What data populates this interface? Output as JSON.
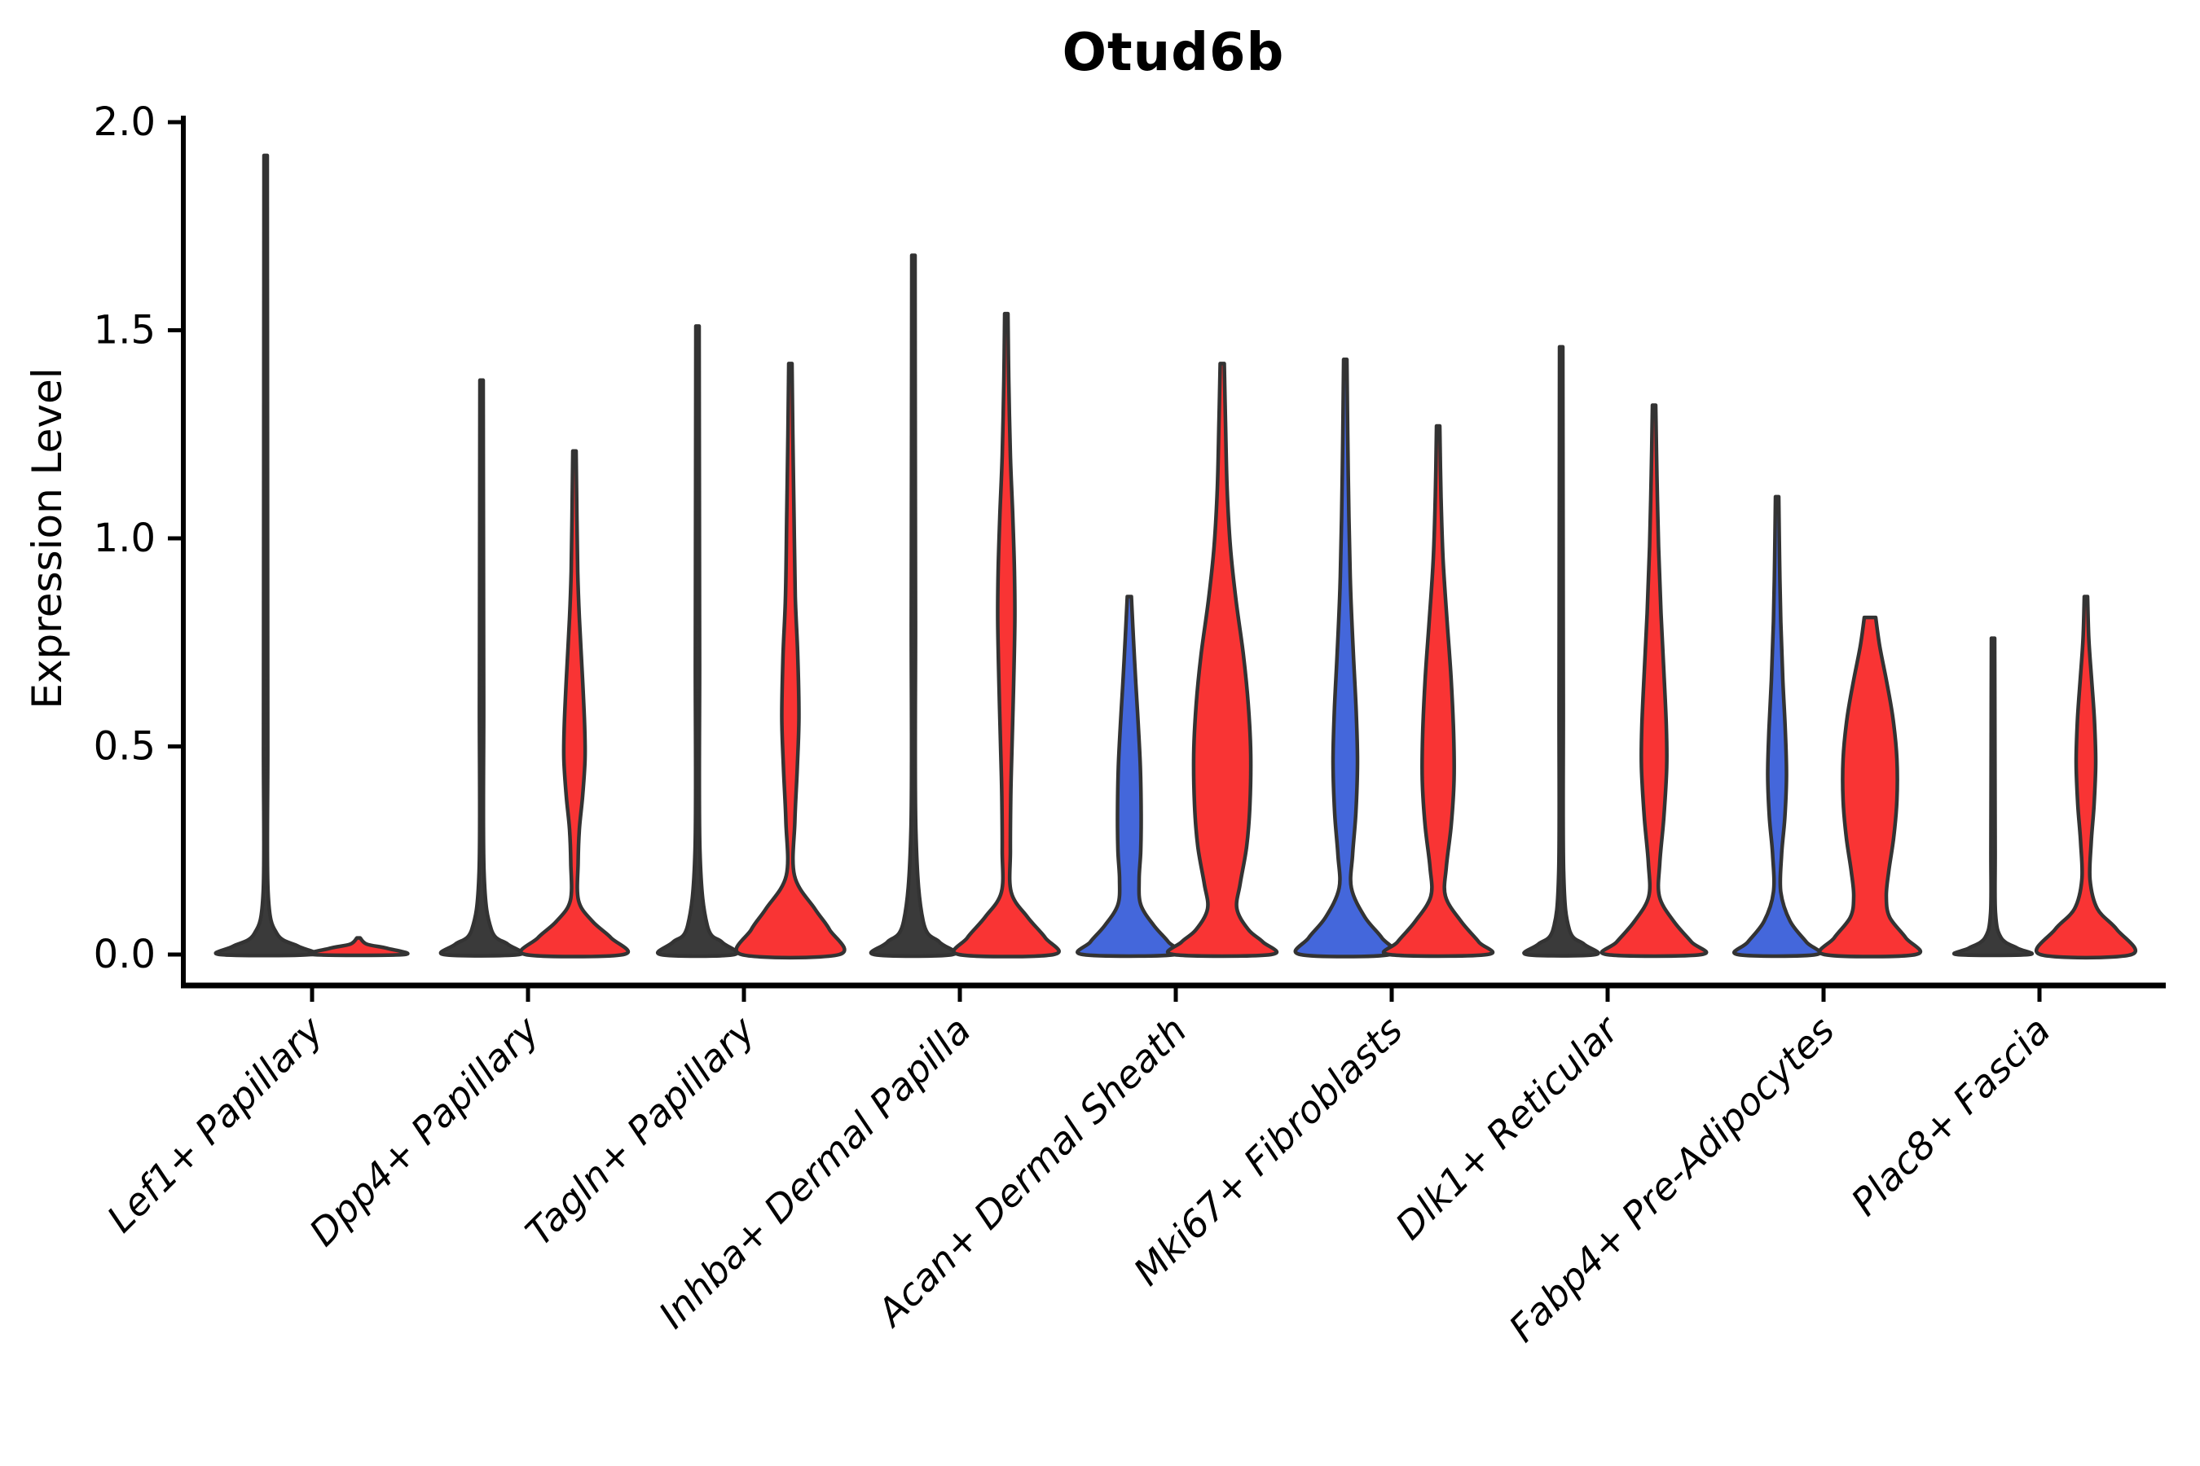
{
  "title": "Otud6b",
  "y_axis": {
    "label": "Expression Level",
    "tick_labels": [
      "0.0",
      "0.5",
      "1.0",
      "1.5",
      "2.0"
    ]
  },
  "chart_data": {
    "type": "violin",
    "title": "Otud6b",
    "xlabel": "",
    "ylabel": "Expression Level",
    "ylim": [
      0,
      2.0
    ],
    "yticks": [
      0.0,
      0.5,
      1.0,
      1.5,
      2.0
    ],
    "grid": false,
    "legend": "none",
    "categories": [
      "Lef1+ Papillary",
      "Dpp4+ Papillary",
      "Tagln+ Papillary",
      "Inhba+ Dermal Papilla",
      "Acan+ Dermal Sheath",
      "Mki67+ Fibroblasts",
      "Dlk1+ Reticular",
      "Fabp4+ Pre-Adipocytes",
      "Plac8+ Fascia"
    ],
    "series": [
      {
        "name": "left-violins",
        "visible_fills": [
          "black-line",
          "black-line",
          "black-line",
          "black-line",
          "blue",
          "blue",
          "black-line",
          "blue",
          "black-line"
        ],
        "max_expression": [
          1.92,
          1.38,
          1.51,
          1.68,
          0.86,
          1.43,
          1.46,
          1.1,
          0.76
        ]
      },
      {
        "name": "right-violins",
        "visible_fills": [
          "red-flat",
          "red",
          "red",
          "red",
          "red",
          "red",
          "red",
          "red",
          "red"
        ],
        "max_expression": [
          0.04,
          1.21,
          1.42,
          1.54,
          1.42,
          1.27,
          1.32,
          0.81,
          0.86
        ]
      }
    ],
    "colors": {
      "red": "#F93434",
      "blue": "#4467DB",
      "dark": "#3A3A3A",
      "outline": "#333333",
      "axis": "#000000"
    },
    "violins": [
      {
        "cat": 0,
        "side": "left",
        "fill": "dark",
        "max": 1.92,
        "profile": [
          [
            1.92,
            2
          ],
          [
            1.5,
            2.2
          ],
          [
            1.0,
            2.4
          ],
          [
            0.5,
            2.6
          ],
          [
            0.15,
            3
          ],
          [
            0.05,
            14
          ],
          [
            0.02,
            40
          ],
          [
            0,
            56
          ]
        ]
      },
      {
        "cat": 0,
        "side": "right",
        "fill": "red",
        "max": 0.04,
        "profile": [
          [
            0.04,
            2
          ],
          [
            0.025,
            10
          ],
          [
            0.015,
            35
          ],
          [
            0,
            56
          ]
        ]
      },
      {
        "cat": 1,
        "side": "left",
        "fill": "dark",
        "max": 1.38,
        "profile": [
          [
            1.38,
            2
          ],
          [
            1.0,
            2.3
          ],
          [
            0.6,
            2.6
          ],
          [
            0.2,
            3
          ],
          [
            0.06,
            12
          ],
          [
            0.025,
            32
          ],
          [
            0,
            46
          ]
        ]
      },
      {
        "cat": 1,
        "side": "right",
        "fill": "red",
        "max": 1.21,
        "profile": [
          [
            1.21,
            2
          ],
          [
            1.05,
            3
          ],
          [
            0.92,
            4
          ],
          [
            0.81,
            6
          ],
          [
            0.66,
            10
          ],
          [
            0.55,
            12.5
          ],
          [
            0.47,
            13
          ],
          [
            0.38,
            10
          ],
          [
            0.3,
            6
          ],
          [
            0.22,
            4.5
          ],
          [
            0.13,
            5
          ],
          [
            0.08,
            22
          ],
          [
            0.04,
            45
          ],
          [
            0,
            60
          ]
        ]
      },
      {
        "cat": 2,
        "side": "left",
        "fill": "dark",
        "max": 1.51,
        "profile": [
          [
            1.51,
            2
          ],
          [
            1.1,
            2.3
          ],
          [
            0.7,
            2.6
          ],
          [
            0.25,
            3
          ],
          [
            0.07,
            12
          ],
          [
            0.03,
            30
          ],
          [
            0,
            45
          ]
        ]
      },
      {
        "cat": 2,
        "side": "right",
        "fill": "red",
        "max": 1.42,
        "profile": [
          [
            1.42,
            2
          ],
          [
            1.25,
            3
          ],
          [
            1.05,
            4.5
          ],
          [
            0.86,
            6
          ],
          [
            0.72,
            9
          ],
          [
            0.57,
            10.5
          ],
          [
            0.45,
            8.5
          ],
          [
            0.32,
            5.5
          ],
          [
            0.19,
            5
          ],
          [
            0.11,
            30
          ],
          [
            0.06,
            48
          ],
          [
            0,
            60
          ]
        ]
      },
      {
        "cat": 3,
        "side": "left",
        "fill": "dark",
        "max": 1.68,
        "profile": [
          [
            1.68,
            2
          ],
          [
            1.2,
            2.3
          ],
          [
            0.8,
            2.6
          ],
          [
            0.3,
            3
          ],
          [
            0.08,
            12
          ],
          [
            0.03,
            32
          ],
          [
            0,
            48
          ]
        ]
      },
      {
        "cat": 3,
        "side": "right",
        "fill": "red",
        "max": 1.54,
        "profile": [
          [
            1.54,
            2
          ],
          [
            1.38,
            3
          ],
          [
            1.2,
            5
          ],
          [
            1.05,
            8
          ],
          [
            0.92,
            10
          ],
          [
            0.8,
            10.5
          ],
          [
            0.65,
            9
          ],
          [
            0.5,
            7
          ],
          [
            0.38,
            5.5
          ],
          [
            0.25,
            5
          ],
          [
            0.15,
            6
          ],
          [
            0.09,
            26
          ],
          [
            0.04,
            48
          ],
          [
            0,
            58
          ]
        ]
      },
      {
        "cat": 4,
        "side": "left",
        "fill": "blue",
        "max": 0.86,
        "profile": [
          [
            0.86,
            2.5
          ],
          [
            0.76,
            5
          ],
          [
            0.65,
            8
          ],
          [
            0.55,
            11
          ],
          [
            0.45,
            13.5
          ],
          [
            0.34,
            14.5
          ],
          [
            0.25,
            14
          ],
          [
            0.18,
            12
          ],
          [
            0.12,
            14
          ],
          [
            0.07,
            30
          ],
          [
            0.03,
            48
          ],
          [
            0,
            57
          ]
        ]
      },
      {
        "cat": 4,
        "side": "right",
        "fill": "red",
        "max": 1.42,
        "profile": [
          [
            1.42,
            2.5
          ],
          [
            1.28,
            4
          ],
          [
            1.12,
            6
          ],
          [
            0.98,
            10
          ],
          [
            0.85,
            17
          ],
          [
            0.72,
            26
          ],
          [
            0.6,
            32
          ],
          [
            0.48,
            35
          ],
          [
            0.36,
            34
          ],
          [
            0.26,
            30
          ],
          [
            0.17,
            22
          ],
          [
            0.11,
            18
          ],
          [
            0.06,
            32
          ],
          [
            0.03,
            50
          ],
          [
            0,
            60
          ]
        ]
      },
      {
        "cat": 5,
        "side": "left",
        "fill": "blue",
        "max": 1.43,
        "profile": [
          [
            1.43,
            2
          ],
          [
            1.25,
            3
          ],
          [
            1.05,
            4.5
          ],
          [
            0.88,
            6.5
          ],
          [
            0.72,
            10
          ],
          [
            0.58,
            13.5
          ],
          [
            0.46,
            15
          ],
          [
            0.34,
            13
          ],
          [
            0.24,
            9
          ],
          [
            0.16,
            7.5
          ],
          [
            0.09,
            24
          ],
          [
            0.04,
            45
          ],
          [
            0,
            55
          ]
        ]
      },
      {
        "cat": 5,
        "side": "right",
        "fill": "red",
        "max": 1.27,
        "profile": [
          [
            1.27,
            2
          ],
          [
            1.1,
            3.5
          ],
          [
            0.95,
            6
          ],
          [
            0.8,
            11
          ],
          [
            0.66,
            16
          ],
          [
            0.53,
            19
          ],
          [
            0.42,
            19.5
          ],
          [
            0.31,
            16
          ],
          [
            0.21,
            10
          ],
          [
            0.14,
            9
          ],
          [
            0.08,
            28
          ],
          [
            0.03,
            50
          ],
          [
            0,
            60
          ]
        ]
      },
      {
        "cat": 6,
        "side": "left",
        "fill": "dark",
        "max": 1.46,
        "profile": [
          [
            1.46,
            2
          ],
          [
            1.05,
            2.3
          ],
          [
            0.6,
            2.6
          ],
          [
            0.2,
            3
          ],
          [
            0.06,
            10
          ],
          [
            0.025,
            28
          ],
          [
            0,
            42
          ]
        ]
      },
      {
        "cat": 6,
        "side": "right",
        "fill": "red",
        "max": 1.32,
        "profile": [
          [
            1.32,
            2
          ],
          [
            1.15,
            3.5
          ],
          [
            0.98,
            5.5
          ],
          [
            0.82,
            8.5
          ],
          [
            0.68,
            12
          ],
          [
            0.55,
            15
          ],
          [
            0.45,
            15.5
          ],
          [
            0.33,
            12
          ],
          [
            0.22,
            7
          ],
          [
            0.14,
            6.5
          ],
          [
            0.08,
            24
          ],
          [
            0.03,
            46
          ],
          [
            0,
            58
          ]
        ]
      },
      {
        "cat": 7,
        "side": "left",
        "fill": "blue",
        "max": 1.1,
        "profile": [
          [
            1.1,
            2
          ],
          [
            0.95,
            3
          ],
          [
            0.8,
            4.5
          ],
          [
            0.66,
            7
          ],
          [
            0.54,
            10
          ],
          [
            0.43,
            11.5
          ],
          [
            0.33,
            9.5
          ],
          [
            0.24,
            5.5
          ],
          [
            0.15,
            4.5
          ],
          [
            0.08,
            16
          ],
          [
            0.03,
            36
          ],
          [
            0,
            48
          ]
        ]
      },
      {
        "cat": 7,
        "side": "right",
        "fill": "red",
        "max": 0.81,
        "profile": [
          [
            0.81,
            7
          ],
          [
            0.74,
            12
          ],
          [
            0.66,
            20
          ],
          [
            0.57,
            28
          ],
          [
            0.47,
            33
          ],
          [
            0.37,
            33
          ],
          [
            0.28,
            29
          ],
          [
            0.2,
            23
          ],
          [
            0.14,
            20
          ],
          [
            0.09,
            24
          ],
          [
            0.04,
            44
          ],
          [
            0,
            56
          ]
        ]
      },
      {
        "cat": 8,
        "side": "left",
        "fill": "dark",
        "max": 0.76,
        "profile": [
          [
            0.76,
            2
          ],
          [
            0.5,
            2.3
          ],
          [
            0.25,
            2.6
          ],
          [
            0.1,
            3
          ],
          [
            0.04,
            10
          ],
          [
            0.015,
            30
          ],
          [
            0,
            44
          ]
        ]
      },
      {
        "cat": 8,
        "side": "right",
        "fill": "red",
        "max": 0.86,
        "profile": [
          [
            0.86,
            2
          ],
          [
            0.76,
            3.5
          ],
          [
            0.66,
            7
          ],
          [
            0.56,
            10.5
          ],
          [
            0.46,
            12
          ],
          [
            0.36,
            10
          ],
          [
            0.27,
            6.5
          ],
          [
            0.18,
            5
          ],
          [
            0.11,
            14
          ],
          [
            0.06,
            38
          ],
          [
            0,
            56
          ]
        ]
      }
    ]
  }
}
